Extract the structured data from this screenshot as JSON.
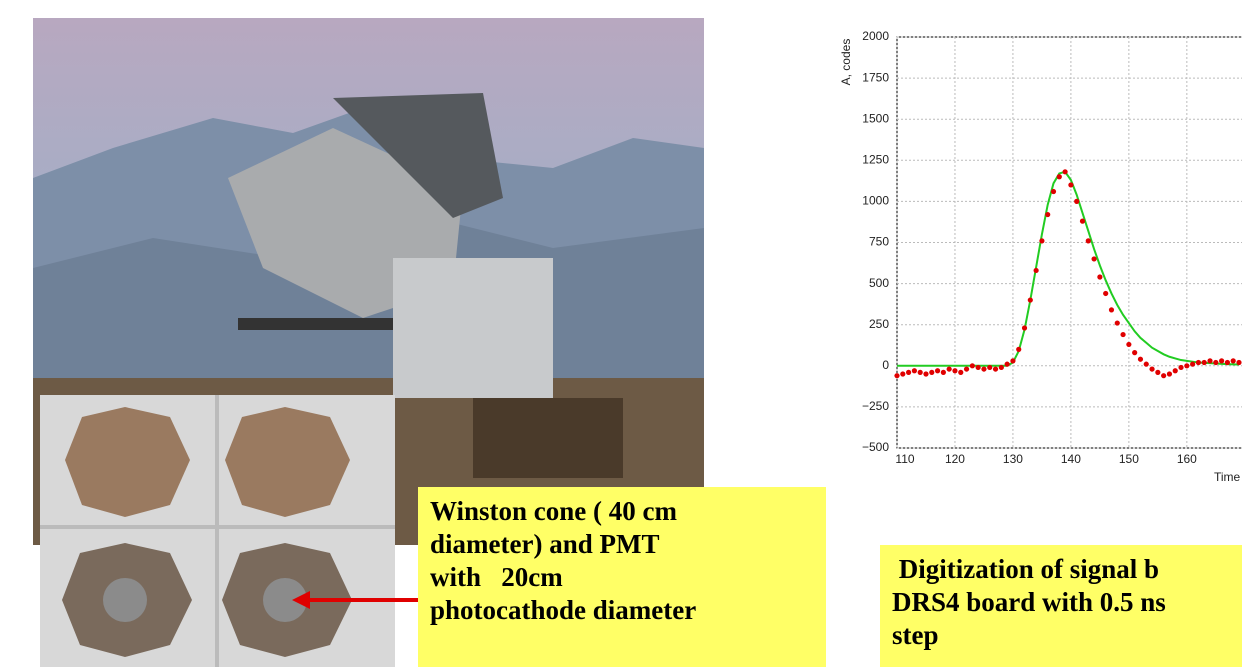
{
  "left_box": {
    "lines": [
      "Winston cone ( 40 cm",
      "diameter) and PMT",
      "with   20cm",
      "photocathode diameter"
    ]
  },
  "right_box": {
    "lines": [
      " Digitization of signal b",
      "DRS4 board with 0.5 ns",
      "step"
    ]
  },
  "chart_data": {
    "type": "scatter-line",
    "y_label": "A, codes",
    "x_label": "Time",
    "xlim": [
      110,
      169
    ],
    "ylim": [
      -500,
      2000
    ],
    "xticks": [
      110,
      120,
      130,
      140,
      150,
      160
    ],
    "yticks": [
      {
        "value": -500,
        "label": "−500"
      },
      {
        "value": -250,
        "label": "−250"
      },
      0,
      250,
      500,
      750,
      1000,
      1250,
      1500,
      1750,
      2000
    ],
    "grid": true,
    "x": [
      110,
      111,
      112,
      113,
      114,
      115,
      116,
      117,
      118,
      119,
      120,
      121,
      122,
      123,
      124,
      125,
      126,
      127,
      128,
      129,
      130,
      131,
      132,
      133,
      134,
      135,
      136,
      137,
      138,
      139,
      140,
      141,
      142,
      143,
      144,
      145,
      146,
      147,
      148,
      149,
      150,
      151,
      152,
      153,
      154,
      155,
      156,
      157,
      158,
      159,
      160,
      161,
      162,
      163,
      164,
      165,
      166,
      167,
      168,
      169
    ],
    "series": [
      {
        "kind": "points",
        "color": "#e00000",
        "values": [
          -60,
          -50,
          -40,
          -30,
          -40,
          -50,
          -40,
          -30,
          -40,
          -20,
          -30,
          -40,
          -20,
          0,
          -10,
          -20,
          -10,
          -20,
          -10,
          10,
          30,
          100,
          230,
          400,
          580,
          760,
          920,
          1060,
          1150,
          1180,
          1100,
          1000,
          880,
          760,
          650,
          540,
          440,
          340,
          260,
          190,
          130,
          80,
          40,
          10,
          -20,
          -40,
          -60,
          -50,
          -30,
          -10,
          0,
          10,
          20,
          20,
          30,
          20,
          30,
          20,
          30,
          20
        ]
      },
      {
        "kind": "line",
        "color": "#22cc22",
        "values": [
          0,
          0,
          0,
          0,
          0,
          0,
          0,
          0,
          0,
          0,
          0,
          0,
          0,
          0,
          0,
          0,
          0,
          0,
          0,
          0,
          20,
          90,
          220,
          400,
          600,
          800,
          980,
          1110,
          1170,
          1180,
          1130,
          1040,
          930,
          820,
          710,
          610,
          520,
          440,
          370,
          310,
          260,
          210,
          170,
          140,
          110,
          90,
          70,
          55,
          45,
          35,
          30,
          25,
          20,
          18,
          16,
          14,
          12,
          10,
          9,
          8
        ]
      }
    ]
  }
}
